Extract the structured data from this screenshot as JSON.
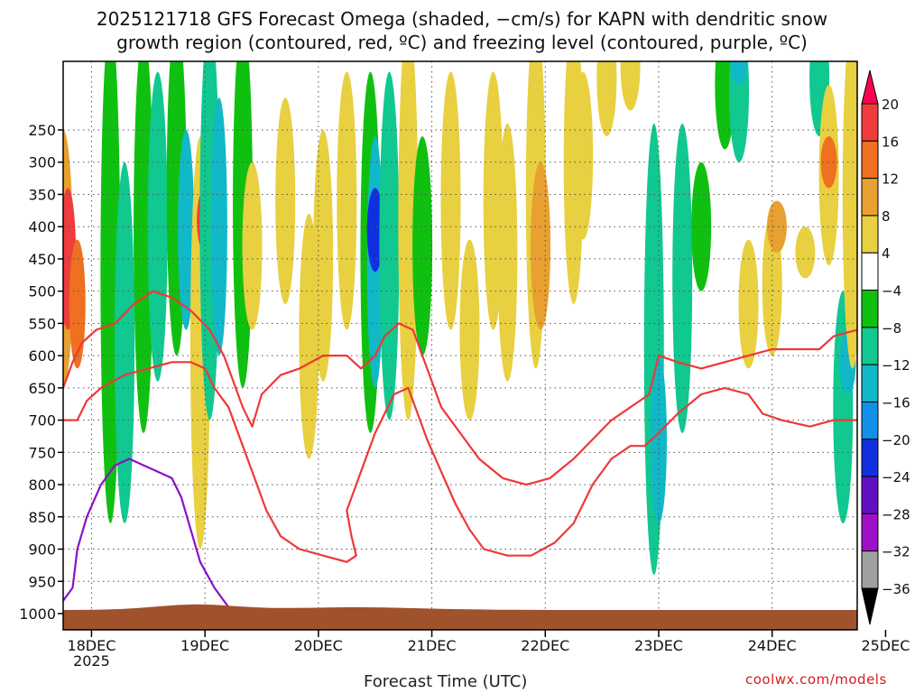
{
  "title_line1": "2025121718 GFS Forecast Omega (shaded, −cm/s) for KAPN with dendritic snow",
  "title_line2": "growth region (contoured, red, ºC) and freezing level (contoured, purple, ºC)",
  "footer": {
    "xlabel": "Forecast Time (UTC)",
    "credit": "coolwx.com/models"
  },
  "chart_data": {
    "type": "heatmap",
    "title": "2025121718 GFS Forecast Omega (shaded, −cm/s) for KAPN with dendritic snow growth region (contoured, red, ºC) and freezing level (contoured, purple, ºC)",
    "xlabel": "Forecast Time (UTC)",
    "ylabel": "Pressure (hPa)",
    "x_range_hours": [
      0,
      168
    ],
    "x_ticks": [
      {
        "hour": 6,
        "label": "18DEC",
        "sublabel": "2025"
      },
      {
        "hour": 30,
        "label": "19DEC"
      },
      {
        "hour": 54,
        "label": "20DEC"
      },
      {
        "hour": 78,
        "label": "21DEC"
      },
      {
        "hour": 102,
        "label": "22DEC"
      },
      {
        "hour": 126,
        "label": "23DEC"
      },
      {
        "hour": 150,
        "label": "24DEC"
      },
      {
        "hour": 174,
        "label": "25DEC"
      }
    ],
    "y_ticks": [
      250,
      300,
      350,
      400,
      450,
      500,
      550,
      600,
      650,
      700,
      750,
      800,
      850,
      900,
      950,
      1000
    ],
    "colorbar": {
      "labels": [
        "20",
        "16",
        "12",
        "8",
        "4",
        "−4",
        "−8",
        "−12",
        "−16",
        "−20",
        "−24",
        "−28",
        "−32",
        "−36"
      ],
      "colors": [
        "#ff0050",
        "#f03c3c",
        "#ee7020",
        "#e8a030",
        "#e8d040",
        "#ffffff",
        "#10c010",
        "#10c890",
        "#10b8c8",
        "#1090e8",
        "#1030e0",
        "#6010c0",
        "#a010c8",
        "#a0a0a0",
        "#000000"
      ]
    },
    "omega_patches": [
      {
        "hour": 0,
        "top": 250,
        "bottom": 650,
        "v": 8
      },
      {
        "hour": 1,
        "top": 340,
        "bottom": 560,
        "v": 18
      },
      {
        "hour": 3,
        "top": 420,
        "bottom": 620,
        "v": 12
      },
      {
        "hour": 10,
        "top": 80,
        "bottom": 860,
        "v": -6
      },
      {
        "hour": 13,
        "top": 300,
        "bottom": 860,
        "v": -10
      },
      {
        "hour": 17,
        "top": 100,
        "bottom": 720,
        "v": -6
      },
      {
        "hour": 20,
        "top": 160,
        "bottom": 640,
        "v": -9
      },
      {
        "hour": 24,
        "top": 80,
        "bottom": 600,
        "v": -6
      },
      {
        "hour": 26,
        "top": 250,
        "bottom": 560,
        "v": -12
      },
      {
        "hour": 29,
        "top": 260,
        "bottom": 900,
        "v": 6
      },
      {
        "hour": 30,
        "top": 340,
        "bottom": 440,
        "v": 18
      },
      {
        "hour": 31,
        "top": 80,
        "bottom": 700,
        "v": -8
      },
      {
        "hour": 33,
        "top": 200,
        "bottom": 600,
        "v": -12
      },
      {
        "hour": 38,
        "top": 80,
        "bottom": 650,
        "v": -6
      },
      {
        "hour": 40,
        "top": 300,
        "bottom": 560,
        "v": 6
      },
      {
        "hour": 47,
        "top": 200,
        "bottom": 520,
        "v": 6
      },
      {
        "hour": 52,
        "top": 380,
        "bottom": 760,
        "v": 6
      },
      {
        "hour": 55,
        "top": 250,
        "bottom": 640,
        "v": 6
      },
      {
        "hour": 60,
        "top": 160,
        "bottom": 560,
        "v": 6
      },
      {
        "hour": 65,
        "top": 160,
        "bottom": 720,
        "v": -6
      },
      {
        "hour": 66,
        "top": 260,
        "bottom": 650,
        "v": -12
      },
      {
        "hour": 66,
        "top": 340,
        "bottom": 470,
        "v": -20
      },
      {
        "hour": 69,
        "top": 160,
        "bottom": 700,
        "v": -8
      },
      {
        "hour": 73,
        "top": 80,
        "bottom": 700,
        "v": 6
      },
      {
        "hour": 76,
        "top": 260,
        "bottom": 600,
        "v": -6
      },
      {
        "hour": 82,
        "top": 160,
        "bottom": 560,
        "v": 6
      },
      {
        "hour": 86,
        "top": 420,
        "bottom": 700,
        "v": 6
      },
      {
        "hour": 91,
        "top": 160,
        "bottom": 560,
        "v": 6
      },
      {
        "hour": 94,
        "top": 240,
        "bottom": 640,
        "v": 6
      },
      {
        "hour": 100,
        "top": 80,
        "bottom": 620,
        "v": 6
      },
      {
        "hour": 101,
        "top": 300,
        "bottom": 560,
        "v": 10
      },
      {
        "hour": 108,
        "top": 80,
        "bottom": 520,
        "v": 6
      },
      {
        "hour": 110,
        "top": 160,
        "bottom": 420,
        "v": 6
      },
      {
        "hour": 115,
        "top": 80,
        "bottom": 260,
        "v": 6
      },
      {
        "hour": 120,
        "top": 80,
        "bottom": 220,
        "v": 6
      },
      {
        "hour": 125,
        "top": 240,
        "bottom": 940,
        "v": -8
      },
      {
        "hour": 126,
        "top": 600,
        "bottom": 860,
        "v": -14
      },
      {
        "hour": 131,
        "top": 240,
        "bottom": 720,
        "v": -8
      },
      {
        "hour": 135,
        "top": 300,
        "bottom": 500,
        "v": -6
      },
      {
        "hour": 140,
        "top": 80,
        "bottom": 280,
        "v": -6
      },
      {
        "hour": 143,
        "top": 80,
        "bottom": 300,
        "v": -8
      },
      {
        "hour": 143,
        "top": 120,
        "bottom": 180,
        "v": -12
      },
      {
        "hour": 145,
        "top": 420,
        "bottom": 620,
        "v": 6
      },
      {
        "hour": 150,
        "top": 380,
        "bottom": 600,
        "v": 6
      },
      {
        "hour": 151,
        "top": 360,
        "bottom": 440,
        "v": 10
      },
      {
        "hour": 157,
        "top": 400,
        "bottom": 480,
        "v": 6
      },
      {
        "hour": 160,
        "top": 80,
        "bottom": 260,
        "v": -8
      },
      {
        "hour": 162,
        "top": 180,
        "bottom": 460,
        "v": 6
      },
      {
        "hour": 162,
        "top": 260,
        "bottom": 340,
        "v": 12
      },
      {
        "hour": 165,
        "top": 500,
        "bottom": 860,
        "v": -8
      },
      {
        "hour": 166,
        "top": 560,
        "bottom": 660,
        "v": -14
      },
      {
        "hour": 167,
        "top": 80,
        "bottom": 620,
        "v": 6
      }
    ],
    "contours": {
      "dgz_minus12": [
        [
          0,
          700
        ],
        [
          3,
          700
        ],
        [
          5,
          670
        ],
        [
          8,
          650
        ],
        [
          13,
          630
        ],
        [
          18,
          620
        ],
        [
          23,
          610
        ],
        [
          27,
          610
        ],
        [
          30,
          620
        ],
        [
          32,
          650
        ],
        [
          35,
          680
        ],
        [
          37,
          720
        ],
        [
          39,
          760
        ],
        [
          41,
          800
        ],
        [
          43,
          840
        ],
        [
          46,
          880
        ],
        [
          50,
          900
        ],
        [
          55,
          910
        ],
        [
          60,
          920
        ],
        [
          62,
          910
        ],
        [
          61,
          880
        ],
        [
          60,
          840
        ],
        [
          62,
          800
        ],
        [
          64,
          760
        ],
        [
          66,
          720
        ],
        [
          68,
          690
        ],
        [
          70,
          660
        ],
        [
          73,
          650
        ],
        [
          75,
          690
        ],
        [
          77,
          730
        ],
        [
          80,
          780
        ],
        [
          83,
          830
        ],
        [
          86,
          870
        ],
        [
          89,
          900
        ],
        [
          94,
          910
        ],
        [
          99,
          910
        ],
        [
          104,
          890
        ],
        [
          108,
          860
        ],
        [
          112,
          800
        ],
        [
          116,
          760
        ],
        [
          120,
          740
        ],
        [
          123,
          740
        ],
        [
          126,
          720
        ],
        [
          130,
          690
        ],
        [
          135,
          660
        ],
        [
          140,
          650
        ],
        [
          145,
          660
        ],
        [
          148,
          690
        ],
        [
          152,
          700
        ],
        [
          158,
          710
        ],
        [
          163,
          700
        ],
        [
          168,
          700
        ]
      ],
      "dgz_minus18": [
        [
          0,
          650
        ],
        [
          2,
          610
        ],
        [
          4,
          580
        ],
        [
          7,
          560
        ],
        [
          11,
          550
        ],
        [
          15,
          520
        ],
        [
          19,
          500
        ],
        [
          23,
          510
        ],
        [
          27,
          530
        ],
        [
          31,
          560
        ],
        [
          34,
          600
        ],
        [
          36,
          640
        ],
        [
          38,
          680
        ],
        [
          40,
          710
        ],
        [
          42,
          660
        ],
        [
          46,
          630
        ],
        [
          50,
          620
        ],
        [
          55,
          600
        ],
        [
          60,
          600
        ],
        [
          63,
          620
        ],
        [
          66,
          600
        ],
        [
          68,
          570
        ],
        [
          71,
          550
        ],
        [
          74,
          560
        ],
        [
          76,
          600
        ],
        [
          78,
          640
        ],
        [
          80,
          680
        ],
        [
          84,
          720
        ],
        [
          88,
          760
        ],
        [
          93,
          790
        ],
        [
          98,
          800
        ],
        [
          103,
          790
        ],
        [
          108,
          760
        ],
        [
          112,
          730
        ],
        [
          116,
          700
        ],
        [
          120,
          680
        ],
        [
          124,
          660
        ],
        [
          126,
          600
        ],
        [
          130,
          610
        ],
        [
          135,
          620
        ],
        [
          140,
          610
        ],
        [
          145,
          600
        ],
        [
          150,
          590
        ],
        [
          155,
          590
        ],
        [
          160,
          590
        ],
        [
          163,
          570
        ],
        [
          168,
          560
        ]
      ],
      "freezing_0": [
        [
          0,
          980
        ],
        [
          2,
          960
        ],
        [
          3,
          900
        ],
        [
          5,
          850
        ],
        [
          8,
          800
        ],
        [
          11,
          770
        ],
        [
          14,
          760
        ],
        [
          17,
          770
        ],
        [
          20,
          780
        ],
        [
          23,
          790
        ],
        [
          25,
          820
        ],
        [
          27,
          870
        ],
        [
          29,
          920
        ],
        [
          32,
          960
        ],
        [
          35,
          990
        ]
      ]
    }
  }
}
